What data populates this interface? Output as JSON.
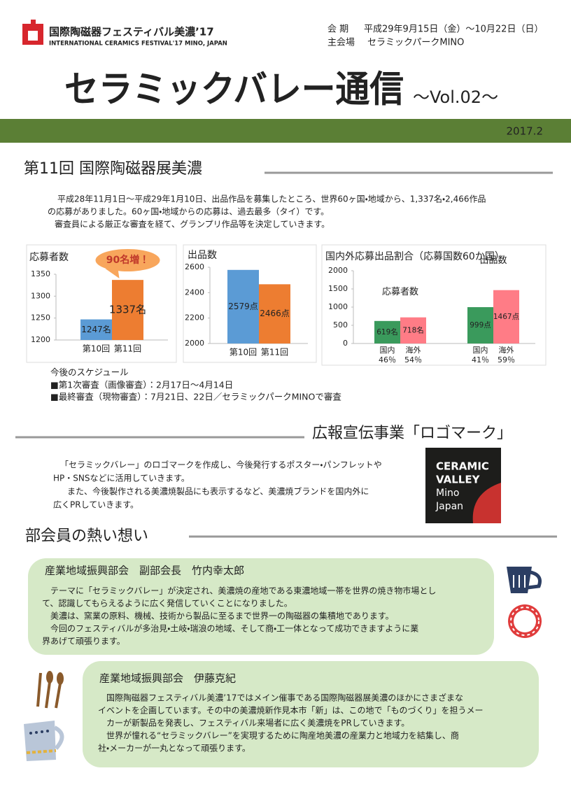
{
  "header": {
    "logo_jp": "国際陶磁器フェスティバル美濃’17",
    "logo_en": "INTERNATIONAL CERAMICS FESTIVAL'17 MINO, JAPAN",
    "session_label": "会 期",
    "session": "平成29年9月15日（金）～10月22日（日）",
    "venue_label": "主会場",
    "venue": "セラミックパークMINO",
    "title": "セラミックバレー通信",
    "vol": "～Vol.02～",
    "date": "2017.2"
  },
  "section1": {
    "heading": "第11回 国際陶磁器展美濃",
    "lines": [
      "平成28年11月1日～平成29年1月10日、出品作品を募集したところ、世界60ヶ国・地域から、1,337名・2,466作品",
      "の応募がありました。60ヶ国・地域からの応募は、過去最多（タイ）です。",
      "審査員による厳正な審査を経て、グランプリ作品等を決定していきます。"
    ],
    "schedule_title": "今後のスケジュール",
    "schedule": [
      "■第1次審査（画像審査）：2月17日～4月14日",
      "■最終審査（現物審査）：7月21日、22日／セラミックパークMINOで審査"
    ]
  },
  "chart_data": [
    {
      "type": "bar",
      "title": "応募者数",
      "categories": [
        "第10回",
        "第11回"
      ],
      "values": [
        1247,
        1337
      ],
      "value_labels": [
        "1247名",
        "1337名"
      ],
      "colors": [
        "#5b9bd5",
        "#ed7d31"
      ],
      "ylim": [
        1200,
        1350
      ],
      "yticks": [
        1200,
        1250,
        1300,
        1350
      ],
      "annotation": "90名増！"
    },
    {
      "type": "bar",
      "title": "出品数",
      "categories": [
        "第10回",
        "第11回"
      ],
      "values": [
        2579,
        2466
      ],
      "value_labels": [
        "2579点",
        "2466点"
      ],
      "colors": [
        "#5b9bd5",
        "#ed7d31"
      ],
      "ylim": [
        2000,
        2600
      ],
      "yticks": [
        2000,
        2200,
        2400,
        2600
      ]
    },
    {
      "type": "grouped_bar",
      "title": "国内外応募出品割合（応募国数60か国）",
      "groups": [
        "応募者数",
        "出品数"
      ],
      "series": [
        {
          "name": "国内",
          "color": "#3a9a5c",
          "values": [
            619,
            999
          ],
          "value_labels": [
            "619名",
            "999点"
          ],
          "shares": [
            46,
            41
          ],
          "share_labels": [
            "46％",
            "41％"
          ]
        },
        {
          "name": "海外",
          "color": "#ff7c86",
          "values": [
            718,
            1467
          ],
          "value_labels": [
            "718名",
            "1467点"
          ],
          "shares": [
            54,
            59
          ],
          "share_labels": [
            "54％",
            "59％"
          ]
        }
      ],
      "ylim": [
        0,
        2000
      ],
      "yticks": [
        0,
        500,
        1000,
        1500,
        2000
      ]
    }
  ],
  "section2": {
    "heading": "広報宣伝事業「ロゴマーク」",
    "lines": [
      "「セラミックバレー」のロゴマークを作成し、今後発行するポスター・パンフレットや",
      "HP・SNSなどに活用していきます。",
      "また、今後製作される美濃焼製品にも表示するなど、美濃焼ブランドを国内外に",
      "広くPRしていきます。"
    ],
    "logo": [
      "CERAMIC",
      "VALLEY",
      "Mino",
      "Japan"
    ]
  },
  "section3": {
    "heading": "部会員の熱い想い",
    "messages": [
      {
        "title": "産業地域振興部会　副部会長　竹内幸太郎",
        "lines": [
          "テーマに「セラミックバレー」が決定され、美濃焼の産地である東濃地域一帯を世界の焼き物市場とし",
          "て、認識してもらえるように広く発信していくことになりました。",
          "美濃は、窯業の原料、機械、技術から製品に至るまで世界一の陶磁器の集積地であります。",
          "今回のフェスティバルが多治見・土岐・瑞浪の地域、そして商・工一体となって成功できますように業",
          "界あげて頑張ります。"
        ]
      },
      {
        "title": "産業地域振興部会　伊藤克紀",
        "lines": [
          "国際陶磁器フェスティバル美濃’17ではメイン催事である国際陶磁器展美濃のほかにさまざまな",
          "イベントを企画しています。その中の美濃焼新作見本市「新」は、この地で「ものづくり」を担うメー",
          "カーが新製品を発表し、フェスティバル来場者に広く美濃焼をPRしていきます。",
          "世界が憧れる“セラミックバレー”を実現するために陶産地美濃の産業力と地域力を結集し、商",
          "社・メーカーが一丸となって頑張ります。"
        ]
      }
    ]
  }
}
